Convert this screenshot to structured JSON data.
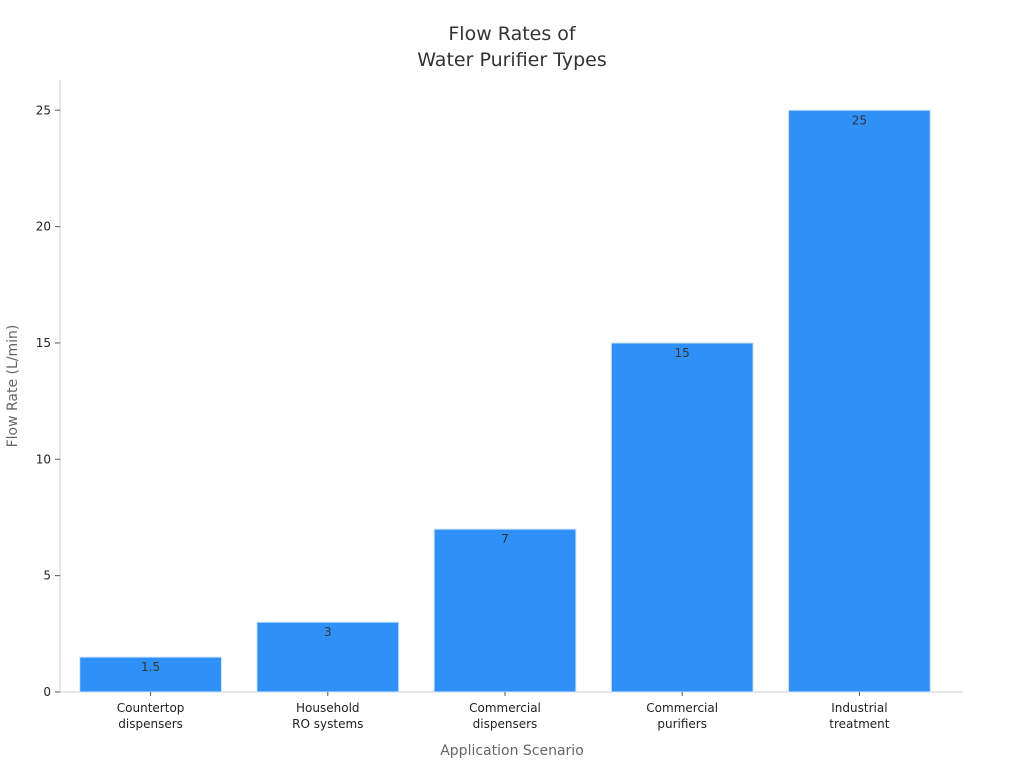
{
  "chart_data": {
    "type": "bar",
    "title_lines": [
      "Flow Rates of",
      "Water Purifier Types"
    ],
    "categories": [
      [
        "Countertop",
        "dispensers"
      ],
      [
        "Household",
        "RO systems"
      ],
      [
        "Commercial",
        "dispensers"
      ],
      [
        "Commercial",
        "purifiers"
      ],
      [
        "Industrial",
        "treatment"
      ]
    ],
    "values": [
      1.5,
      3,
      7,
      15,
      25
    ],
    "value_labels": [
      "1.5",
      "3",
      "7",
      "15",
      "25"
    ],
    "xlabel": "Application Scenario",
    "ylabel": "Flow Rate (L/min)",
    "ylim": [
      0,
      26.3
    ],
    "yticks": [
      0,
      5,
      10,
      15,
      20,
      25
    ],
    "grid": false,
    "legend": "none",
    "bar_color": "#2f91f7"
  }
}
